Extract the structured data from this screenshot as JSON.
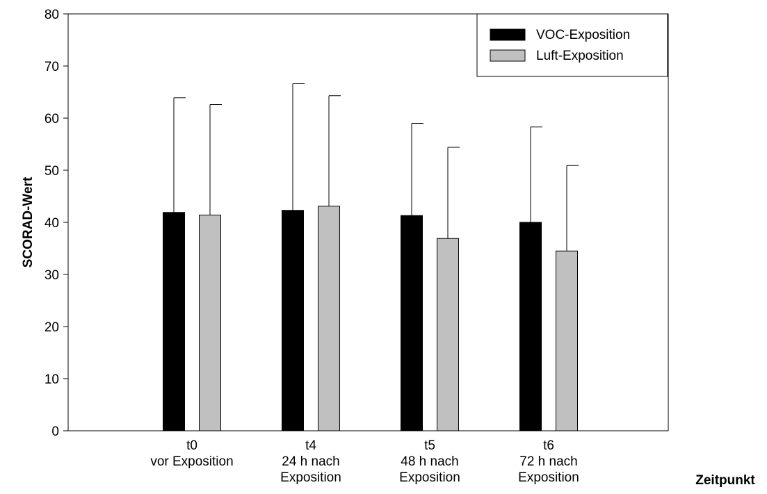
{
  "chart_data": {
    "type": "bar",
    "title": "",
    "ylabel": "SCORAD-Wert",
    "xlabel": "Zeitpunkt",
    "ylim": [
      0,
      80
    ],
    "yticks": [
      0,
      10,
      20,
      30,
      40,
      50,
      60,
      70,
      80
    ],
    "categories": [
      [
        "t0",
        "vor Exposition"
      ],
      [
        "t4",
        "24 h nach",
        "Exposition"
      ],
      [
        "t5",
        "48 h nach",
        "Exposition"
      ],
      [
        "t6",
        "72 h nach",
        "Exposition"
      ]
    ],
    "series": [
      {
        "name": "VOC-Exposition",
        "color": "#000000",
        "values": [
          41.9,
          42.3,
          41.3,
          40.0
        ],
        "error_upper": [
          63.9,
          66.6,
          59.0,
          58.3
        ]
      },
      {
        "name": "Luft-Exposition",
        "color": "#c0c0c0",
        "values": [
          41.4,
          43.1,
          36.9,
          34.5
        ],
        "error_upper": [
          62.6,
          64.3,
          54.4,
          50.9
        ]
      }
    ],
    "legend_position": "top-right",
    "grid": false
  }
}
